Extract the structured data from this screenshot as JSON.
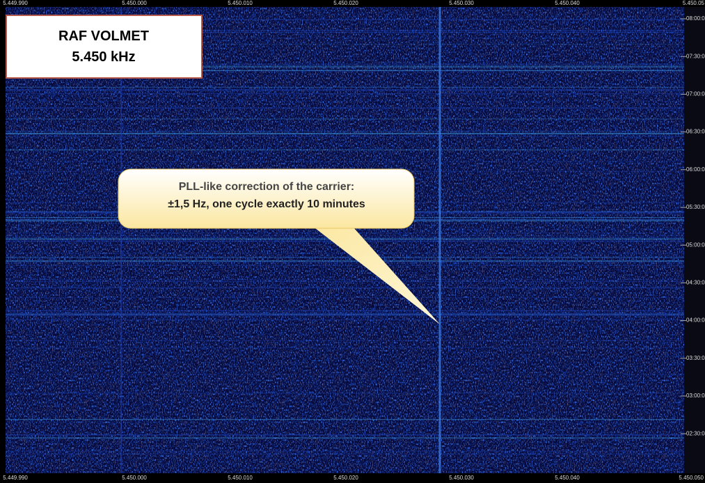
{
  "header": {
    "title": "RAF VOLMET",
    "frequency": "5.450 kHz"
  },
  "callout": {
    "lines": [
      "PLL-like correction of the carrier:",
      "±1,5 Hz, one cycle exactly 10 minutes"
    ]
  },
  "top_axis": {
    "labels": [
      "5.449.990",
      "5.450.000",
      "5.450.010",
      "5.450.020",
      "5.450.030",
      "5.450.040",
      "5.450.05"
    ]
  },
  "bottom_axis": {
    "labels": [
      "5.449.990",
      "5.450.000",
      "5.450.010",
      "5.450.020",
      "5.450.030",
      "5.450.040",
      "5.450.050"
    ]
  },
  "right_axis": {
    "labels": [
      "08:00:0",
      "07:30:0",
      "07:00:0",
      "06:30:0",
      "06:00:0",
      "05:30:0",
      "05:00:0",
      "04:30:0",
      "04:00:0",
      "03:30:0",
      "03:00:0",
      "02:30:0"
    ]
  }
}
